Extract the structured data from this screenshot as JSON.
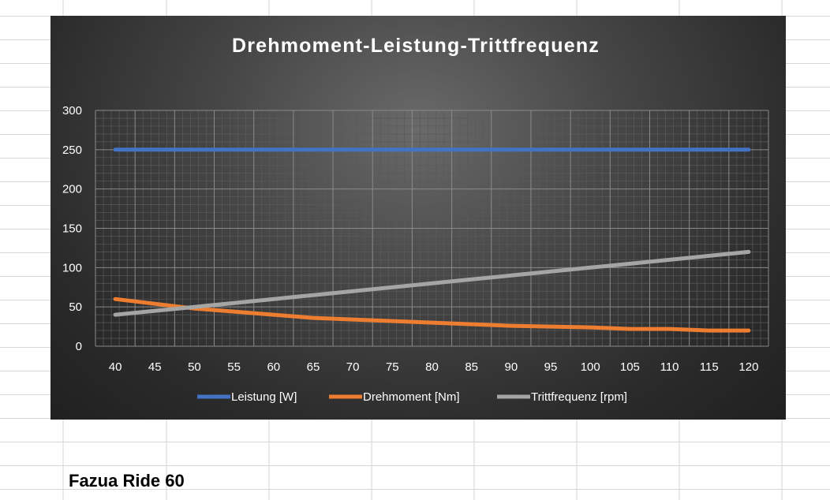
{
  "spreadsheet": {
    "cell_label": "Fazua Ride 60"
  },
  "chart_data": {
    "type": "line",
    "title": "Drehmoment-Leistung-Trittfrequenz",
    "x": [
      40,
      45,
      50,
      55,
      60,
      65,
      70,
      75,
      80,
      85,
      90,
      95,
      100,
      105,
      110,
      115,
      120
    ],
    "ylim": [
      0,
      300
    ],
    "yticks": [
      0,
      50,
      100,
      150,
      200,
      250,
      300
    ],
    "grid": true,
    "legend": "bottom",
    "series": [
      {
        "name": "Leistung [W]",
        "color": "#4472c4",
        "values": [
          250,
          250,
          250,
          250,
          250,
          250,
          250,
          250,
          250,
          250,
          250,
          250,
          250,
          250,
          250,
          250,
          250
        ]
      },
      {
        "name": "Drehmoment [Nm]",
        "color": "#ed7d31",
        "values": [
          60,
          54,
          48,
          44,
          40,
          36,
          34,
          32,
          30,
          28,
          26,
          25,
          24,
          22,
          22,
          20,
          20
        ]
      },
      {
        "name": "Trittfrequenz [rpm]",
        "color": "#a5a5a5",
        "values": [
          40,
          45,
          50,
          55,
          60,
          65,
          70,
          75,
          80,
          85,
          90,
          95,
          100,
          105,
          110,
          115,
          120
        ]
      }
    ]
  }
}
